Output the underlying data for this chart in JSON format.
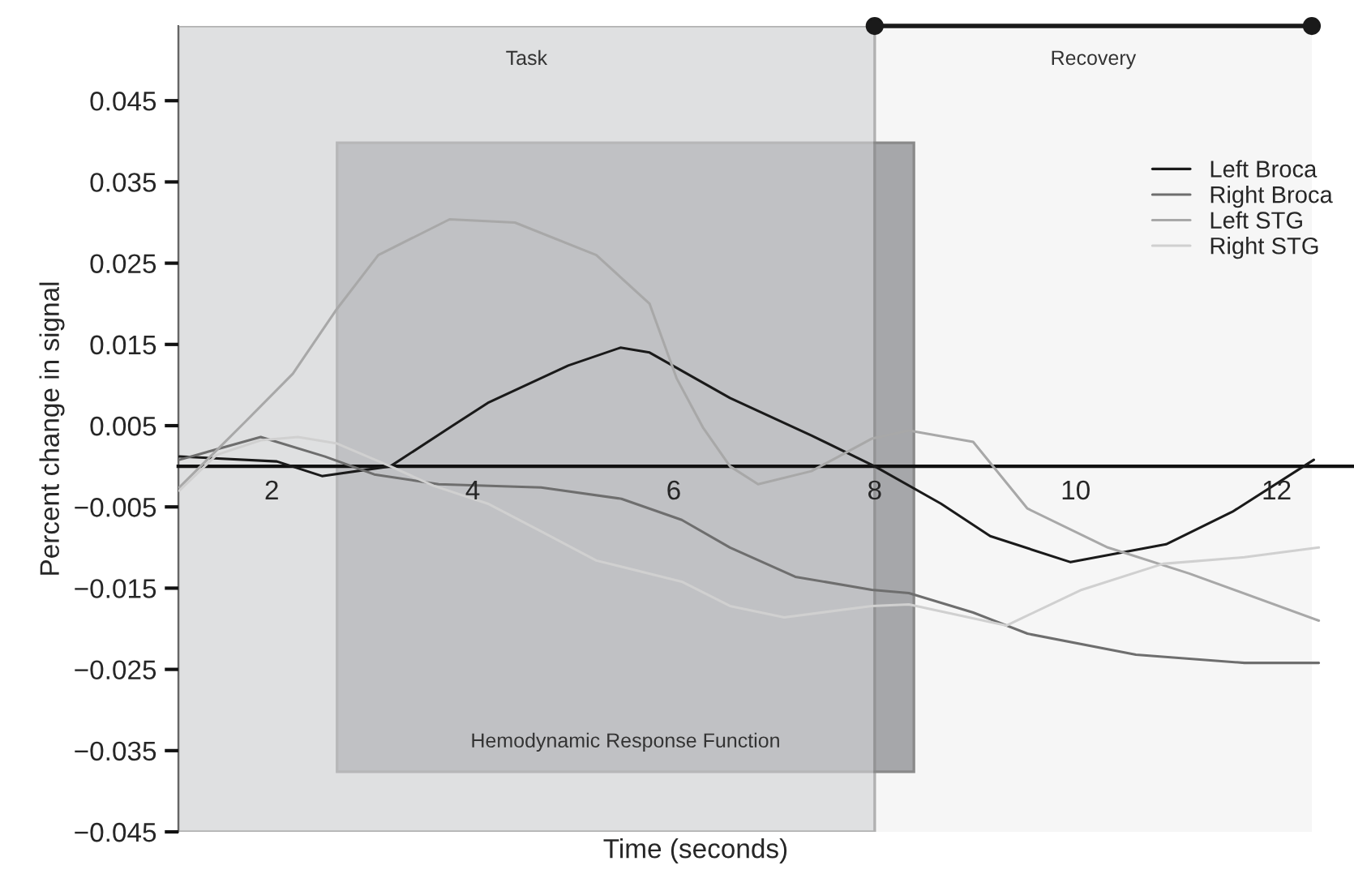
{
  "chart_data": {
    "type": "line",
    "xlabel": "Time (seconds)",
    "ylabel": "Percent change in signal",
    "xlim": [
      1.07,
      12.77
    ],
    "ylim": [
      -0.045,
      0.0542
    ],
    "xticks": [
      2,
      4,
      6,
      8,
      10,
      12
    ],
    "yticks": [
      {
        "value": -0.045,
        "label": "−0.045"
      },
      {
        "value": -0.035,
        "label": "−0.035"
      },
      {
        "value": -0.025,
        "label": "−0.025"
      },
      {
        "value": -0.015,
        "label": "−0.015"
      },
      {
        "value": -0.005,
        "label": "−0.005"
      },
      0.005,
      0.015,
      0.025,
      0.035,
      0.045
    ],
    "grid": false,
    "legend": "top right",
    "marker": "none",
    "line_style": "solid",
    "bands": [
      {
        "axis": "x",
        "from": 2.65,
        "to": 8.39,
        "label": "Hemodynamic Response Function",
        "color": "#a6a7aa"
      },
      {
        "axis": "x",
        "from": 1.07,
        "to": 8.0,
        "label": "Task",
        "color": "#cfd0d2"
      },
      {
        "axis": "x",
        "from": 8.0,
        "to": 12.35,
        "label": "Recovery",
        "color": "#f6f6f6"
      }
    ],
    "series": [
      {
        "name": "Left Broca",
        "color": "#1a1a1a",
        "x": [
          1.08,
          2.05,
          2.5,
          3.18,
          3.8,
          4.15,
          4.95,
          5.47,
          5.76,
          6.56,
          7.37,
          8.0,
          8.66,
          9.15,
          9.95,
          10.9,
          11.56,
          12.37
        ],
        "values": [
          0.0012,
          0.0006,
          -0.0012,
          0.0,
          0.005,
          0.0078,
          0.0124,
          0.0146,
          0.014,
          0.0084,
          0.0038,
          0.0,
          -0.0046,
          -0.0086,
          -0.0118,
          -0.0096,
          -0.0056,
          0.0008
        ]
      },
      {
        "name": "Right Broca",
        "color": "#6e6e6e",
        "x": [
          1.08,
          1.89,
          2.53,
          3.02,
          3.66,
          4.68,
          5.48,
          6.08,
          6.56,
          7.21,
          7.97,
          8.34,
          8.98,
          9.52,
          10.6,
          11.68,
          12.42
        ],
        "values": [
          0.0008,
          0.0036,
          0.0012,
          -0.001,
          -0.0022,
          -0.0026,
          -0.004,
          -0.0066,
          -0.01,
          -0.0136,
          -0.0152,
          -0.0156,
          -0.018,
          -0.0206,
          -0.0232,
          -0.0242,
          -0.0242
        ]
      },
      {
        "name": "Left STG",
        "color": "#a8a8a8",
        "x": [
          1.08,
          1.73,
          2.21,
          2.65,
          3.06,
          3.77,
          4.42,
          5.23,
          5.76,
          6.03,
          6.29,
          6.56,
          6.84,
          7.37,
          7.97,
          8.34,
          8.98,
          9.52,
          10.32,
          11.13,
          12.42
        ],
        "values": [
          -0.0026,
          0.0054,
          0.0114,
          0.0194,
          0.026,
          0.0304,
          0.03,
          0.026,
          0.02,
          0.0108,
          0.0048,
          0.0,
          -0.0022,
          -0.0006,
          0.0034,
          0.0044,
          0.003,
          -0.0052,
          -0.01,
          -0.0132,
          -0.019
        ]
      },
      {
        "name": "Right STG",
        "color": "#d0d0d0",
        "x": [
          1.08,
          1.45,
          1.89,
          2.26,
          2.65,
          3.18,
          3.61,
          4.15,
          4.68,
          5.23,
          6.08,
          6.56,
          7.1,
          7.97,
          8.34,
          9.31,
          10.06,
          10.87,
          11.68,
          12.42
        ],
        "values": [
          -0.003,
          0.0014,
          0.0032,
          0.0036,
          0.0028,
          0.0,
          -0.0024,
          -0.0046,
          -0.008,
          -0.0116,
          -0.0142,
          -0.0172,
          -0.0186,
          -0.0172,
          -0.017,
          -0.0196,
          -0.0152,
          -0.012,
          -0.0112,
          -0.01
        ]
      }
    ]
  }
}
